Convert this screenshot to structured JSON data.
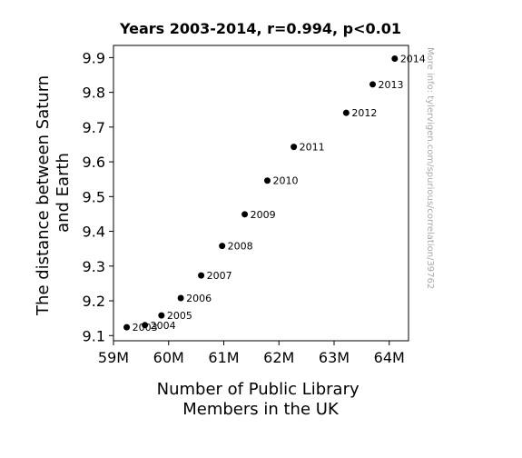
{
  "chart_data": {
    "type": "scatter",
    "title": "Years 2003-2014, r=0.994, p<0.01",
    "xlabel_lines": [
      "Number of Public Library",
      "Members in the UK"
    ],
    "ylabel_lines": [
      "The distance between Saturn",
      "and Earth"
    ],
    "xlim": [
      59000000,
      64350000
    ],
    "ylim": [
      9.085,
      9.935
    ],
    "xticks": [
      {
        "value": 59000000,
        "label": "59M"
      },
      {
        "value": 60000000,
        "label": "60M"
      },
      {
        "value": 61000000,
        "label": "61M"
      },
      {
        "value": 62000000,
        "label": "62M"
      },
      {
        "value": 63000000,
        "label": "63M"
      },
      {
        "value": 64000000,
        "label": "64M"
      }
    ],
    "yticks": [
      {
        "value": 9.1,
        "label": "9.1"
      },
      {
        "value": 9.2,
        "label": "9.2"
      },
      {
        "value": 9.3,
        "label": "9.3"
      },
      {
        "value": 9.4,
        "label": "9.4"
      },
      {
        "value": 9.5,
        "label": "9.5"
      },
      {
        "value": 9.6,
        "label": "9.6"
      },
      {
        "value": 9.7,
        "label": "9.7"
      },
      {
        "value": 9.8,
        "label": "9.8"
      },
      {
        "value": 9.9,
        "label": "9.9"
      }
    ],
    "grid": false,
    "legend": "none",
    "point_color": "#000000",
    "points": [
      {
        "label": "2003",
        "x": 59240000,
        "y": 9.124
      },
      {
        "label": "2004",
        "x": 59570000,
        "y": 9.13
      },
      {
        "label": "2005",
        "x": 59870000,
        "y": 9.158
      },
      {
        "label": "2006",
        "x": 60220000,
        "y": 9.208
      },
      {
        "label": "2007",
        "x": 60590000,
        "y": 9.273
      },
      {
        "label": "2008",
        "x": 60970000,
        "y": 9.358
      },
      {
        "label": "2009",
        "x": 61380000,
        "y": 9.449
      },
      {
        "label": "2010",
        "x": 61790000,
        "y": 9.546
      },
      {
        "label": "2011",
        "x": 62270000,
        "y": 9.643
      },
      {
        "label": "2012",
        "x": 63220000,
        "y": 9.741
      },
      {
        "label": "2013",
        "x": 63700000,
        "y": 9.823
      },
      {
        "label": "2014",
        "x": 64100000,
        "y": 9.897
      }
    ],
    "watermark": "More info: tylervigen.com/spurious/correlation/39762"
  }
}
